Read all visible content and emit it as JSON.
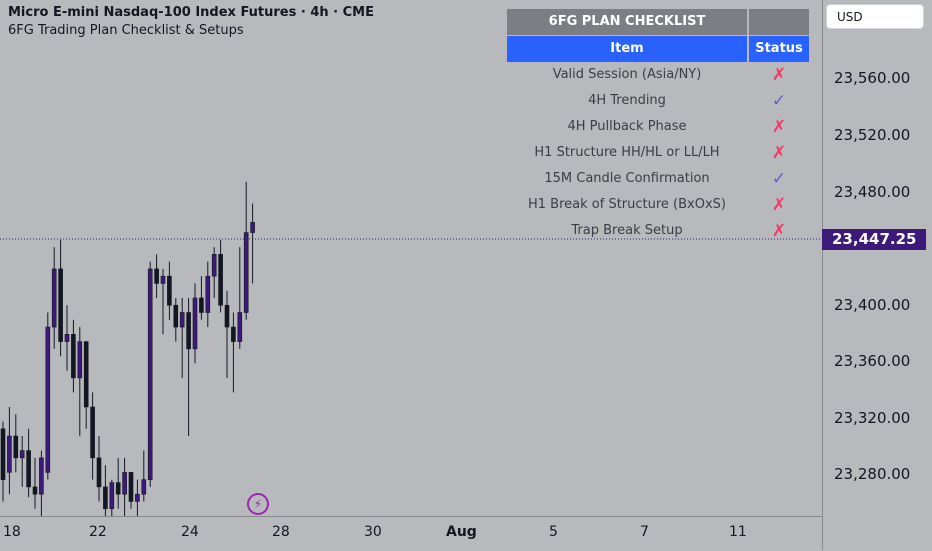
{
  "header": {
    "symbol_line": "Micro E-mini Nasdaq-100 Index Futures · 4h · CME",
    "indicator_line": "6FG Trading Plan Checklist & Setups"
  },
  "currency": "USD",
  "price_axis": {
    "labels": [
      "23,560.00",
      "23,520.00",
      "23,480.00",
      "23,400.00",
      "23,360.00",
      "23,320.00",
      "23,280.00"
    ],
    "current_price": "23,447.25"
  },
  "time_axis": {
    "labels": [
      "18",
      "22",
      "24",
      "28",
      "30",
      "Aug",
      "5",
      "7",
      "11"
    ]
  },
  "checklist": {
    "title": "6FG PLAN CHECKLIST",
    "col_item": "Item",
    "col_status": "Status",
    "rows": [
      {
        "item": "Valid Session (Asia/NY)",
        "status": "✗"
      },
      {
        "item": "4H Trending",
        "status": "✓"
      },
      {
        "item": "4H Pullback Phase",
        "status": "✗"
      },
      {
        "item": "H1 Structure HH/HL or LL/LH",
        "status": "✗"
      },
      {
        "item": "15M Candle Confirmation",
        "status": "✓"
      },
      {
        "item": "H1 Break of Structure (BxOxS)",
        "status": "✗"
      },
      {
        "item": "Trap Break Setup",
        "status": "✗"
      }
    ]
  },
  "colors": {
    "background": "#b8b9bc",
    "candle": "#3d1a7a",
    "header_blue": "#2962ff",
    "cross": "#f23665",
    "check": "#6a5acd"
  },
  "chart_data": {
    "type": "candlestick",
    "ylim": [
      23245,
      23600
    ],
    "candles": [
      {
        "o": 23305,
        "h": 23310,
        "l": 23255,
        "c": 23270
      },
      {
        "o": 23275,
        "h": 23320,
        "l": 23260,
        "c": 23300
      },
      {
        "o": 23300,
        "h": 23315,
        "l": 23275,
        "c": 23285
      },
      {
        "o": 23285,
        "h": 23300,
        "l": 23265,
        "c": 23290
      },
      {
        "o": 23290,
        "h": 23305,
        "l": 23258,
        "c": 23265
      },
      {
        "o": 23265,
        "h": 23285,
        "l": 23250,
        "c": 23260
      },
      {
        "o": 23260,
        "h": 23290,
        "l": 23245,
        "c": 23285
      },
      {
        "o": 23275,
        "h": 23385,
        "l": 23270,
        "c": 23375
      },
      {
        "o": 23375,
        "h": 23430,
        "l": 23360,
        "c": 23415
      },
      {
        "o": 23415,
        "h": 23435,
        "l": 23355,
        "c": 23365
      },
      {
        "o": 23365,
        "h": 23390,
        "l": 23345,
        "c": 23370
      },
      {
        "o": 23370,
        "h": 23380,
        "l": 23330,
        "c": 23340
      },
      {
        "o": 23340,
        "h": 23375,
        "l": 23300,
        "c": 23365
      },
      {
        "o": 23365,
        "h": 23365,
        "l": 23305,
        "c": 23320
      },
      {
        "o": 23320,
        "h": 23330,
        "l": 23270,
        "c": 23285
      },
      {
        "o": 23285,
        "h": 23300,
        "l": 23255,
        "c": 23265
      },
      {
        "o": 23265,
        "h": 23280,
        "l": 23245,
        "c": 23250
      },
      {
        "o": 23250,
        "h": 23270,
        "l": 23245,
        "c": 23268
      },
      {
        "o": 23268,
        "h": 23285,
        "l": 23250,
        "c": 23260
      },
      {
        "o": 23260,
        "h": 23285,
        "l": 23245,
        "c": 23275
      },
      {
        "o": 23275,
        "h": 23275,
        "l": 23250,
        "c": 23255
      },
      {
        "o": 23255,
        "h": 23270,
        "l": 23245,
        "c": 23260
      },
      {
        "o": 23260,
        "h": 23290,
        "l": 23255,
        "c": 23270
      },
      {
        "o": 23270,
        "h": 23420,
        "l": 23265,
        "c": 23415
      },
      {
        "o": 23415,
        "h": 23425,
        "l": 23395,
        "c": 23405
      },
      {
        "o": 23405,
        "h": 23415,
        "l": 23370,
        "c": 23410
      },
      {
        "o": 23410,
        "h": 23420,
        "l": 23380,
        "c": 23390
      },
      {
        "o": 23390,
        "h": 23395,
        "l": 23365,
        "c": 23375
      },
      {
        "o": 23375,
        "h": 23395,
        "l": 23340,
        "c": 23385
      },
      {
        "o": 23385,
        "h": 23395,
        "l": 23300,
        "c": 23360
      },
      {
        "o": 23360,
        "h": 23405,
        "l": 23350,
        "c": 23395
      },
      {
        "o": 23395,
        "h": 23410,
        "l": 23380,
        "c": 23385
      },
      {
        "o": 23385,
        "h": 23420,
        "l": 23375,
        "c": 23410
      },
      {
        "o": 23410,
        "h": 23430,
        "l": 23395,
        "c": 23425
      },
      {
        "o": 23425,
        "h": 23435,
        "l": 23385,
        "c": 23390
      },
      {
        "o": 23390,
        "h": 23400,
        "l": 23340,
        "c": 23375
      },
      {
        "o": 23375,
        "h": 23385,
        "l": 23330,
        "c": 23365
      },
      {
        "o": 23365,
        "h": 23430,
        "l": 23360,
        "c": 23385
      },
      {
        "o": 23385,
        "h": 23475,
        "l": 23380,
        "c": 23440
      },
      {
        "o": 23440,
        "h": 23460,
        "l": 23405,
        "c": 23447
      }
    ]
  }
}
